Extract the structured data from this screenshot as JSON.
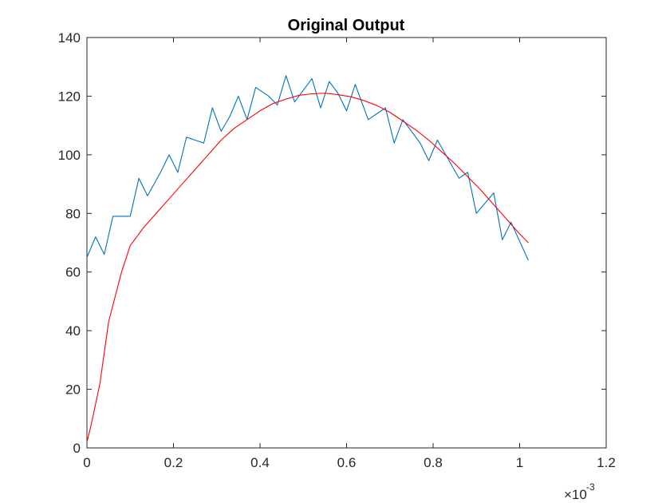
{
  "chart_data": {
    "type": "line",
    "title": "Original Output",
    "xlabel": "",
    "ylabel": "",
    "x_exponent_label": "×10",
    "x_exponent_power": "-3",
    "xlim": [
      0,
      0.0012
    ],
    "ylim": [
      0,
      140
    ],
    "x_ticks": [
      0,
      0.0002,
      0.0004,
      0.0006,
      0.0008,
      0.001,
      0.0012
    ],
    "x_tick_labels": [
      "0",
      "0.2",
      "0.4",
      "0.6",
      "0.8",
      "1",
      "1.2"
    ],
    "y_ticks": [
      0,
      20,
      40,
      60,
      80,
      100,
      120,
      140
    ],
    "y_tick_labels": [
      "0",
      "20",
      "40",
      "60",
      "80",
      "100",
      "120",
      "140"
    ],
    "grid": false,
    "series": [
      {
        "color": "#0072BD",
        "x": [
          0,
          2e-05,
          4e-05,
          6e-05,
          8e-05,
          0.0001,
          0.00012,
          0.00014,
          0.00017,
          0.00019,
          0.00021,
          0.00023,
          0.00025,
          0.00027,
          0.00029,
          0.00031,
          0.00033,
          0.00035,
          0.00037,
          0.00039,
          0.00042,
          0.00044,
          0.00046,
          0.00048,
          0.0005,
          0.00052,
          0.00054,
          0.00056,
          0.00058,
          0.0006,
          0.00062,
          0.00065,
          0.00069,
          0.00071,
          0.00073,
          0.00077,
          0.00079,
          0.00081,
          0.00086,
          0.00088,
          0.0009,
          0.00094,
          0.00096,
          0.00098,
          0.00102
        ],
        "y": [
          65,
          72,
          66,
          79,
          79,
          79,
          92,
          86,
          94,
          100,
          94,
          106,
          105,
          104,
          116,
          108,
          113,
          120,
          112,
          123,
          120,
          117,
          127,
          118,
          122,
          126,
          116,
          125,
          121,
          115,
          124,
          112,
          116,
          104,
          112,
          104,
          98,
          105,
          92,
          94,
          80,
          87,
          71,
          77,
          64
        ]
      },
      {
        "color": "#FF0000",
        "x": [
          0,
          1e-05,
          3e-05,
          5e-05,
          8e-05,
          0.0001,
          0.00013,
          0.00016,
          0.00019,
          0.00022,
          0.00025,
          0.00028,
          0.00031,
          0.00034,
          0.00037,
          0.0004,
          0.00043,
          0.00046,
          0.00049,
          0.00052,
          0.00055,
          0.00058,
          0.00061,
          0.00064,
          0.00067,
          0.0007,
          0.00073,
          0.00076,
          0.00079,
          0.00082,
          0.00085,
          0.00088,
          0.00091,
          0.00094,
          0.00097,
          0.001,
          0.00102
        ],
        "y": [
          2,
          8,
          22,
          43,
          60,
          69,
          75,
          80,
          85,
          90,
          95,
          100,
          105,
          109,
          112,
          115,
          117.5,
          119,
          120.3,
          120.8,
          121,
          120.5,
          119.8,
          118.5,
          116.8,
          114.5,
          111.5,
          108.5,
          105,
          101,
          97,
          92.5,
          88,
          83,
          78,
          73,
          70
        ]
      }
    ]
  }
}
